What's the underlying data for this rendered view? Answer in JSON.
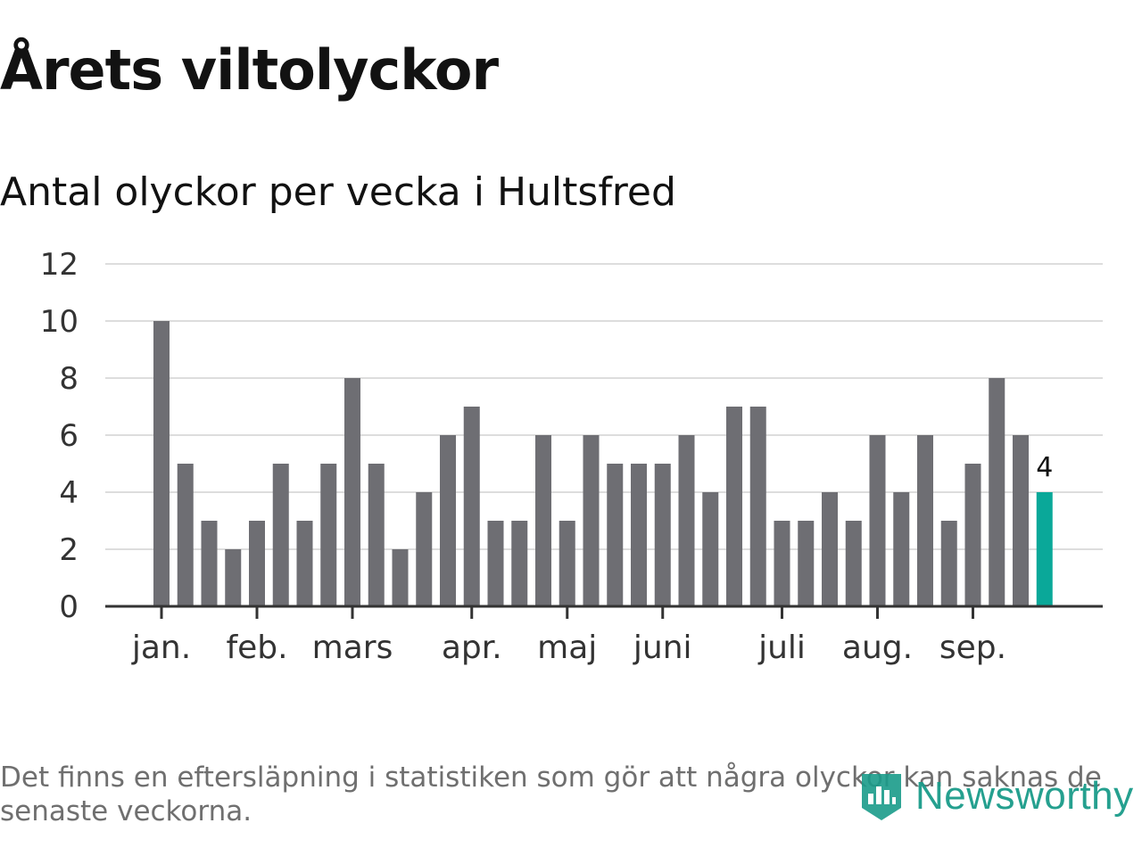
{
  "header": {
    "title": "Årets viltolyckor",
    "subtitle": "Antal olyckor per vecka i Hultsfred"
  },
  "colors": {
    "bar": "#6e6e73",
    "highlight": "#0aa899",
    "grid": "#dddddd",
    "axis": "#333333",
    "brand": "#1a9b8a"
  },
  "chart_data": {
    "type": "bar",
    "title": "Antal olyckor per vecka i Hultsfred",
    "xlabel": "",
    "ylabel": "",
    "ylim": [
      0,
      12
    ],
    "yticks": [
      0,
      2,
      4,
      6,
      8,
      10,
      12
    ],
    "grid": true,
    "values": [
      10,
      5,
      3,
      2,
      3,
      5,
      3,
      5,
      8,
      5,
      2,
      4,
      6,
      7,
      3,
      3,
      6,
      3,
      6,
      5,
      5,
      5,
      6,
      4,
      7,
      7,
      3,
      3,
      4,
      3,
      6,
      4,
      6,
      3,
      5,
      8,
      6,
      4
    ],
    "highlight_index": 37,
    "data_labels": [
      {
        "index": 37,
        "text": "4"
      }
    ],
    "month_ticks": [
      {
        "label": "jan.",
        "position": 0
      },
      {
        "label": "feb.",
        "position": 4
      },
      {
        "label": "mars",
        "position": 8
      },
      {
        "label": "apr.",
        "position": 13
      },
      {
        "label": "maj",
        "position": 17
      },
      {
        "label": "juni",
        "position": 21
      },
      {
        "label": "juli",
        "position": 26
      },
      {
        "label": "aug.",
        "position": 30
      },
      {
        "label": "sep.",
        "position": 34
      }
    ]
  },
  "footer": {
    "note": "Det finns en eftersläpning i statistiken som gör att några olyckor kan saknas de senaste veckorna.",
    "brand": "Newsworthy",
    "brand_icon": "newsworthy-logo-icon"
  }
}
